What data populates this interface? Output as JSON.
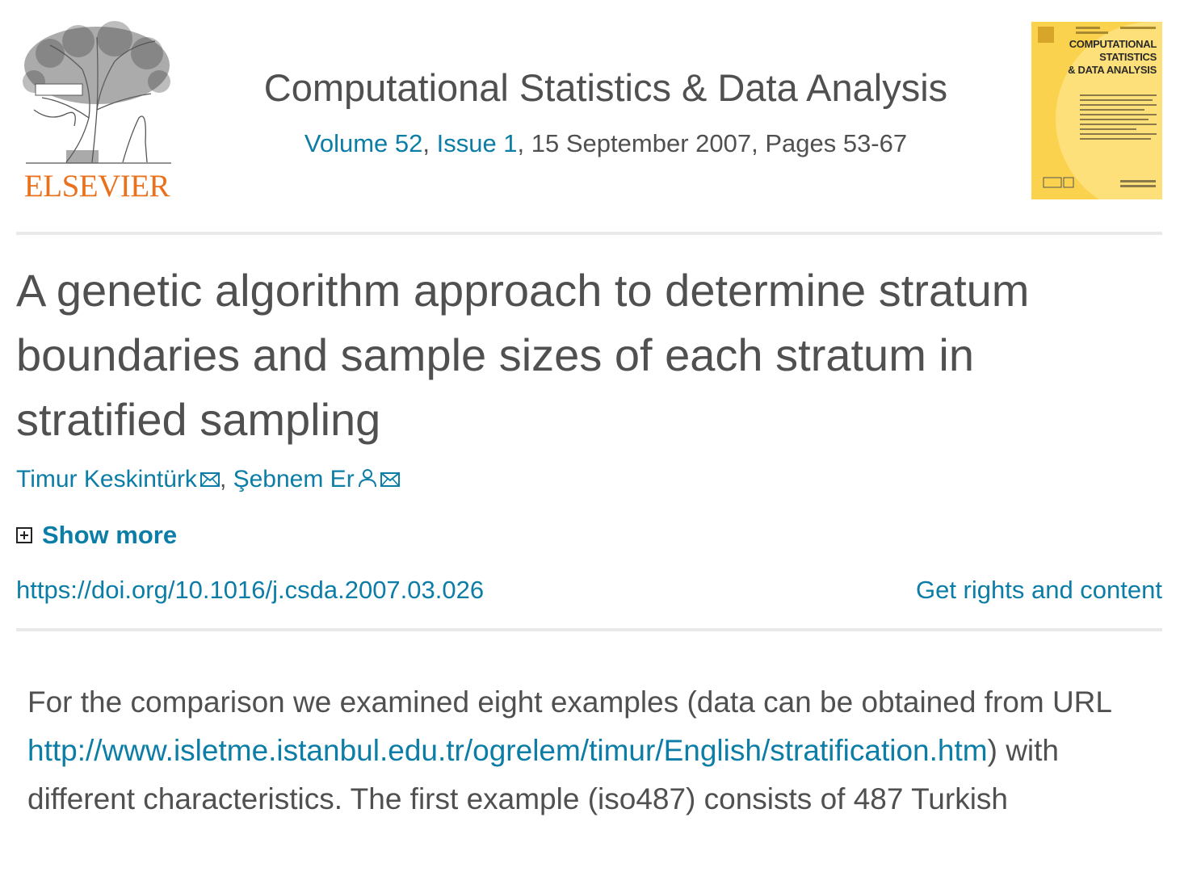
{
  "publisher": {
    "logo_text": "ELSEVIER",
    "accent_color": "#e9711c"
  },
  "journal": {
    "title": "Computational Statistics & Data Analysis",
    "volume_link": "Volume 52",
    "issue_link": "Issue 1",
    "issue_details": "15 September 2007, Pages 53-67",
    "cover": {
      "title_line1": "COMPUTATIONAL",
      "title_line2": "STATISTICS",
      "title_line3": "& DATA ANALYSIS",
      "color": "#fbd24e"
    }
  },
  "article": {
    "title": "A genetic algorithm approach to determine stratum boundaries and sample sizes of each stratum in stratified sampling",
    "authors": [
      {
        "name": "Timur Keskintürk",
        "icons": [
          "envelope-icon"
        ]
      },
      {
        "name": "Şebnem Er",
        "icons": [
          "person-icon",
          "envelope-icon"
        ]
      }
    ],
    "author_separator": ", ",
    "show_more_label": "Show more",
    "doi_link": "https://doi.org/10.1016/j.csda.2007.03.026",
    "rights_link": "Get rights and content"
  },
  "body": {
    "text_before": "For the comparison we examined eight examples (data can be obtained from URL ",
    "url": "http://www.isletme.istanbul.edu.tr/ogrelem/timur/English/stratification.htm",
    "text_after": ") with different characteristics. The first example (iso487) consists of 487 Turkish"
  },
  "colors": {
    "link": "#0c7da6",
    "text": "#505050",
    "divider": "#e9e9e9"
  }
}
